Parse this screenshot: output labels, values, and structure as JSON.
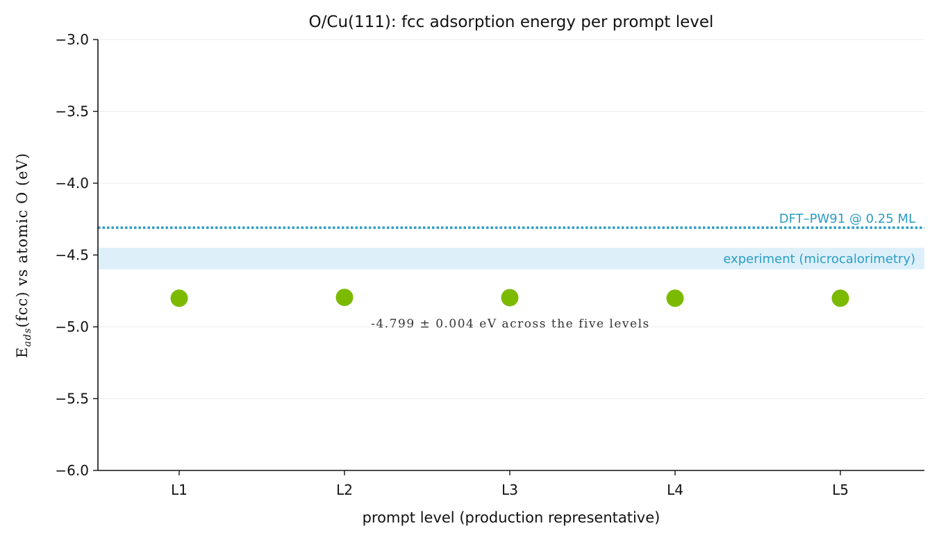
{
  "chart_data": {
    "type": "scatter",
    "title": "O/Cu(111): fcc adsorption energy per prompt level",
    "xlabel": "prompt level (production representative)",
    "ylabel_main": "E",
    "ylabel_sub": "ads",
    "ylabel_rest": "(fcc) vs atomic O (eV)",
    "categories": [
      "L1",
      "L2",
      "L3",
      "L4",
      "L5"
    ],
    "values": [
      -4.801,
      -4.795,
      -4.797,
      -4.801,
      -4.801
    ],
    "ylim": [
      -6.0,
      -3.0
    ],
    "yticks": [
      -3.0,
      -3.5,
      -4.0,
      -4.5,
      -5.0,
      -5.5,
      -6.0
    ],
    "ytick_labels": [
      "−3.0",
      "−3.5",
      "−4.0",
      "−4.5",
      "−5.0",
      "−5.5",
      "−6.0"
    ],
    "grid": "horizontal",
    "reference_line": {
      "label": "DFT–PW91 @ 0.25 ML",
      "y": -4.31,
      "style": "dotted"
    },
    "reference_band": {
      "label": "experiment (microcalorimetry)",
      "y_low": -4.6,
      "y_high": -4.45
    },
    "annotation": "-4.799 ± 0.004 eV across the five levels",
    "colors": {
      "point": "#7cba00",
      "reference": "#2a9cc4",
      "band": "#ddf0fa",
      "grid": "#ececec",
      "axis": "#111111"
    }
  }
}
